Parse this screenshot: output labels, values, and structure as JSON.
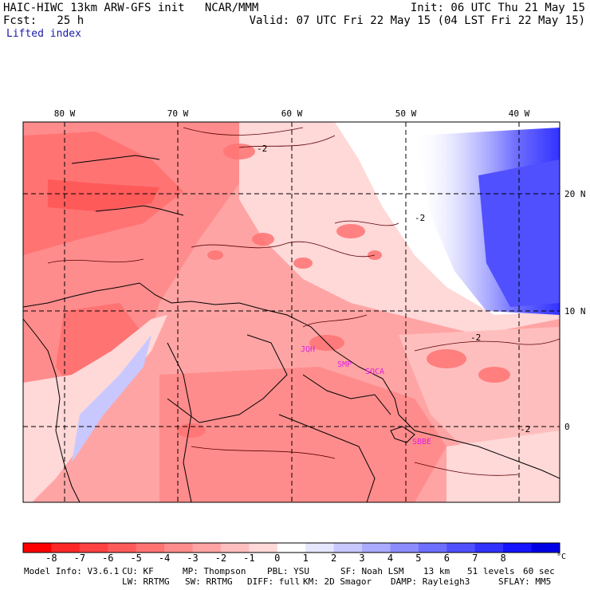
{
  "header": {
    "model_line": "HAIC-HIWC 13km ARW-GFS init   NCAR/MMM",
    "init_line": "Init: 06 UTC Thu 21 May 15",
    "fcst_line": "Fcst:   25 h",
    "valid_line": "Valid: 07 UTC Fri 22 May 15 (04 LST Fri 22 May 15)",
    "field_name": "Lifted index"
  },
  "map": {
    "lon_labels": [
      "80 W",
      "70 W",
      "60 W",
      "50 W",
      "40 W"
    ],
    "lat_labels": [
      "20 N",
      "10 N",
      "0"
    ],
    "contour_labels": [
      "-2",
      "-2",
      "-2",
      "-2"
    ],
    "stations": [
      "JQH",
      "SMP",
      "SOCA",
      "SBBE"
    ],
    "colors": {
      "station": "#e01ee0",
      "border": "#000000",
      "contour": "#5a0000"
    }
  },
  "colorbar": {
    "labels": [
      "-8",
      "-7",
      "-6",
      "-5",
      "-4",
      "-3",
      "-2",
      "-1",
      "0",
      "1",
      "2",
      "3",
      "4",
      "5",
      "6",
      "7",
      "8"
    ],
    "unit": "°C",
    "colors": [
      "#ff0000",
      "#ff2828",
      "#ff4242",
      "#ff5a5a",
      "#ff7373",
      "#ff8c8c",
      "#ffa4a4",
      "#ffbebe",
      "#ffd8d8",
      "#ffffff",
      "#e6e6ff",
      "#c8c8ff",
      "#aaaaff",
      "#8c8cff",
      "#6e6eff",
      "#5050ff",
      "#3232ff",
      "#1414ff",
      "#0000e6"
    ]
  },
  "footer": {
    "model_info": "Model Info: V3.6.1",
    "cu": "CU: KF",
    "mp": "MP: Thompson",
    "pbl": "PBL: YSU",
    "sf": "SF: Noah LSM",
    "res": "13 km",
    "levels": "51 levels",
    "dt": "60 sec",
    "lw": "LW: RRTMG",
    "sw": "SW: RRTMG",
    "diff": "DIFF: full",
    "km": "KM: 2D Smagor",
    "damp": "DAMP: Rayleigh3",
    "sflay": "SFLAY: MM5"
  }
}
